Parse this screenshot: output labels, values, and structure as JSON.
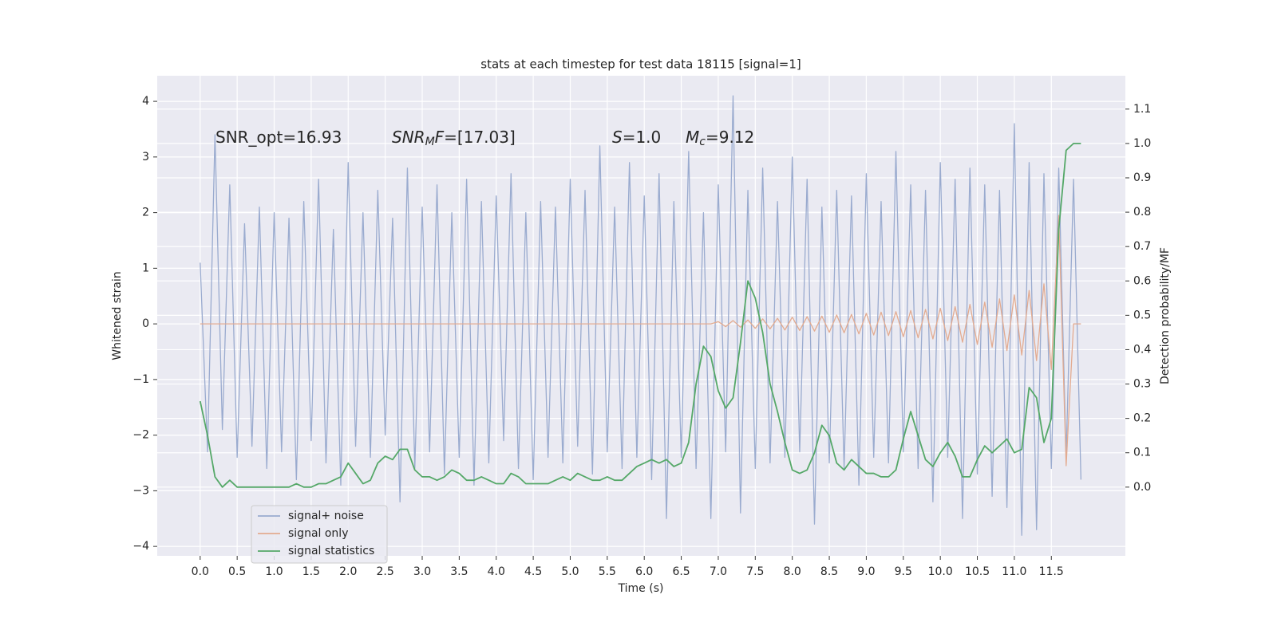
{
  "chart_data": {
    "type": "line",
    "title": "stats at each timestep for test data 18115 [signal=1]",
    "xlabel": "Time (s)",
    "ylabel": "Whitened strain",
    "y2label": "Detection probability/MF",
    "annotations": [
      [
        {
          "text": "SNR_opt=16.93",
          "style": "normal"
        }
      ],
      [
        {
          "text": "SNR",
          "style": "italic"
        },
        {
          "text": "M",
          "style": "sub"
        },
        {
          "text": "F",
          "style": "italic"
        },
        {
          "text": "=[17.03]",
          "style": "normal"
        }
      ],
      [
        {
          "text": "S",
          "style": "italic"
        },
        {
          "text": "=1.0",
          "style": "normal"
        }
      ],
      [
        {
          "text": "M",
          "style": "italic"
        },
        {
          "text": "c",
          "style": "sub"
        },
        {
          "text": "=9.12",
          "style": "normal"
        }
      ]
    ],
    "x": [
      0,
      0.1,
      0.2,
      0.3,
      0.4,
      0.5,
      0.6,
      0.7,
      0.8,
      0.9,
      1,
      1.1,
      1.2,
      1.3,
      1.4,
      1.5,
      1.6,
      1.7,
      1.8,
      1.9,
      2,
      2.1,
      2.2,
      2.3,
      2.4,
      2.5,
      2.6,
      2.7,
      2.8,
      2.9,
      3,
      3.1,
      3.2,
      3.3,
      3.4,
      3.5,
      3.6,
      3.7,
      3.8,
      3.9,
      4,
      4.1,
      4.2,
      4.3,
      4.4,
      4.5,
      4.6,
      4.7,
      4.8,
      4.9,
      5,
      5.1,
      5.2,
      5.3,
      5.4,
      5.5,
      5.6,
      5.7,
      5.8,
      5.9,
      6,
      6.1,
      6.2,
      6.3,
      6.4,
      6.5,
      6.6,
      6.7,
      6.8,
      6.9,
      7,
      7.1,
      7.2,
      7.3,
      7.4,
      7.5,
      7.6,
      7.7,
      7.8,
      7.9,
      8,
      8.1,
      8.2,
      8.3,
      8.4,
      8.5,
      8.6,
      8.7,
      8.8,
      8.9,
      9,
      9.1,
      9.2,
      9.3,
      9.4,
      9.5,
      9.6,
      9.7,
      9.8,
      9.9,
      10,
      10.1,
      10.2,
      10.3,
      10.4,
      10.5,
      10.6,
      10.7,
      10.8,
      10.9,
      11,
      11.1,
      11.2,
      11.3,
      11.4,
      11.5,
      11.6,
      11.7,
      11.8,
      11.9
    ],
    "series": [
      {
        "name": "signal+ noise",
        "color": "#9aabcf",
        "axis": "y",
        "values": [
          1.1,
          -2.3,
          3.4,
          -1.9,
          2.5,
          -2.4,
          1.8,
          -2.2,
          2.1,
          -2.6,
          2.0,
          -2.3,
          1.9,
          -2.8,
          2.2,
          -2.1,
          2.6,
          -2.5,
          1.7,
          -2.9,
          2.9,
          -2.2,
          2.0,
          -2.4,
          2.4,
          -2.0,
          1.9,
          -3.2,
          2.8,
          -2.6,
          2.1,
          -2.3,
          2.5,
          -2.7,
          2.0,
          -2.4,
          2.6,
          -2.9,
          2.2,
          -2.5,
          2.3,
          -2.1,
          2.7,
          -2.6,
          2.0,
          -2.8,
          2.2,
          -2.4,
          2.1,
          -2.5,
          2.6,
          -2.2,
          2.4,
          -2.7,
          3.2,
          -2.3,
          2.1,
          -2.6,
          2.9,
          -2.4,
          2.3,
          -2.8,
          2.7,
          -3.5,
          2.2,
          -2.4,
          3.1,
          -2.6,
          2.0,
          -3.5,
          2.5,
          -2.3,
          4.1,
          -3.4,
          2.4,
          -2.6,
          2.8,
          -2.5,
          2.2,
          -2.4,
          3.0,
          -2.3,
          2.6,
          -3.6,
          2.1,
          -2.5,
          2.4,
          -2.6,
          2.3,
          -2.9,
          2.7,
          -2.4,
          2.2,
          -2.5,
          3.1,
          -2.3,
          2.5,
          -2.6,
          2.4,
          -3.2,
          2.9,
          -2.4,
          2.6,
          -3.5,
          2.8,
          -2.7,
          2.5,
          -3.1,
          2.4,
          -3.3,
          3.6,
          -3.8,
          2.9,
          -3.7,
          2.7,
          -2.6,
          2.8,
          -2.4,
          2.6,
          -2.8
        ]
      },
      {
        "name": "signal only",
        "color": "#e3ab90",
        "axis": "y",
        "values": [
          0,
          0,
          0,
          0,
          0,
          0,
          0,
          0,
          0,
          0,
          0,
          0,
          0,
          0,
          0,
          0,
          0,
          0,
          0,
          0,
          0,
          0,
          0,
          0,
          0,
          0,
          0,
          0,
          0,
          0,
          0,
          0,
          0,
          0,
          0,
          0,
          0,
          0,
          0,
          0,
          0,
          0,
          0,
          0,
          0,
          0,
          0,
          0,
          0,
          0,
          0,
          0,
          0,
          0,
          0,
          0,
          0,
          0,
          0,
          0,
          0,
          0,
          0,
          0,
          0,
          0,
          0,
          0,
          0,
          0,
          0.04,
          -0.05,
          0.06,
          -0.06,
          0.07,
          -0.08,
          0.09,
          -0.09,
          0.1,
          -0.11,
          0.12,
          -0.12,
          0.13,
          -0.13,
          0.14,
          -0.15,
          0.16,
          -0.16,
          0.17,
          -0.18,
          0.19,
          -0.2,
          0.21,
          -0.21,
          0.22,
          -0.23,
          0.24,
          -0.25,
          0.26,
          -0.27,
          0.28,
          -0.3,
          0.31,
          -0.33,
          0.35,
          -0.37,
          0.39,
          -0.42,
          0.45,
          -0.48,
          0.52,
          -0.56,
          0.6,
          -0.66,
          0.72,
          -0.82,
          1.95,
          -2.55,
          0,
          0
        ]
      },
      {
        "name": "signal statistics",
        "color": "#55a868",
        "axis": "y2",
        "values": [
          0.25,
          0.15,
          0.03,
          0.0,
          0.02,
          0.0,
          0.0,
          0.0,
          0.0,
          0.0,
          0.0,
          0.0,
          0.0,
          0.01,
          0.0,
          0.0,
          0.01,
          0.01,
          0.02,
          0.03,
          0.07,
          0.04,
          0.01,
          0.02,
          0.07,
          0.09,
          0.08,
          0.11,
          0.11,
          0.05,
          0.03,
          0.03,
          0.02,
          0.03,
          0.05,
          0.04,
          0.02,
          0.02,
          0.03,
          0.02,
          0.01,
          0.01,
          0.04,
          0.03,
          0.01,
          0.01,
          0.01,
          0.01,
          0.02,
          0.03,
          0.02,
          0.04,
          0.03,
          0.02,
          0.02,
          0.03,
          0.02,
          0.02,
          0.04,
          0.06,
          0.07,
          0.08,
          0.07,
          0.08,
          0.06,
          0.07,
          0.13,
          0.3,
          0.41,
          0.38,
          0.28,
          0.23,
          0.26,
          0.42,
          0.6,
          0.55,
          0.45,
          0.3,
          0.22,
          0.13,
          0.05,
          0.04,
          0.05,
          0.1,
          0.18,
          0.15,
          0.07,
          0.05,
          0.08,
          0.06,
          0.04,
          0.04,
          0.03,
          0.03,
          0.05,
          0.14,
          0.22,
          0.15,
          0.08,
          0.06,
          0.1,
          0.13,
          0.09,
          0.03,
          0.03,
          0.08,
          0.12,
          0.1,
          0.12,
          0.14,
          0.1,
          0.11,
          0.29,
          0.26,
          0.13,
          0.2,
          0.75,
          0.98,
          1.0,
          1.0
        ]
      }
    ],
    "xlim": [
      -0.58,
      12.5
    ],
    "xticks": [
      {
        "value": 0,
        "label": "0.0"
      },
      {
        "value": 0.5,
        "label": "0.5"
      },
      {
        "value": 1,
        "label": "1.0"
      },
      {
        "value": 1.5,
        "label": "1.5"
      },
      {
        "value": 2,
        "label": "2.0"
      },
      {
        "value": 2.5,
        "label": "2.5"
      },
      {
        "value": 3,
        "label": "3.0"
      },
      {
        "value": 3.5,
        "label": "3.5"
      },
      {
        "value": 4,
        "label": "4.0"
      },
      {
        "value": 4.5,
        "label": "4.5"
      },
      {
        "value": 5,
        "label": "5.0"
      },
      {
        "value": 5.5,
        "label": "5.5"
      },
      {
        "value": 6,
        "label": "6.0"
      },
      {
        "value": 6.5,
        "label": "6.5"
      },
      {
        "value": 7,
        "label": "7.0"
      },
      {
        "value": 7.5,
        "label": "7.5"
      },
      {
        "value": 8,
        "label": "8.0"
      },
      {
        "value": 8.5,
        "label": "8.5"
      },
      {
        "value": 9,
        "label": "9.0"
      },
      {
        "value": 9.5,
        "label": "9.5"
      },
      {
        "value": 10,
        "label": "10.0"
      },
      {
        "value": 10.5,
        "label": "10.5"
      },
      {
        "value": 11,
        "label": "11.0"
      },
      {
        "value": 11.5,
        "label": "11.5"
      }
    ],
    "ylim": [
      -4.17,
      4.46
    ],
    "yticks": [
      {
        "value": -4,
        "label": "−4"
      },
      {
        "value": -3,
        "label": "−3"
      },
      {
        "value": -2,
        "label": "−2"
      },
      {
        "value": -1,
        "label": "−1"
      },
      0,
      1,
      2,
      3,
      4
    ],
    "y2lim": [
      -0.2,
      1.197
    ],
    "y2ticks": [
      {
        "value": 0,
        "label": "0.0"
      },
      {
        "value": 0.1,
        "label": "0.1"
      },
      {
        "value": 0.2,
        "label": "0.2"
      },
      {
        "value": 0.3,
        "label": "0.3"
      },
      {
        "value": 0.4,
        "label": "0.4"
      },
      {
        "value": 0.5,
        "label": "0.5"
      },
      {
        "value": 0.6,
        "label": "0.6"
      },
      {
        "value": 0.7,
        "label": "0.7"
      },
      {
        "value": 0.8,
        "label": "0.8"
      },
      {
        "value": 0.9,
        "label": "0.9"
      },
      {
        "value": 1,
        "label": "1.0"
      },
      {
        "value": 1.1,
        "label": "1.1"
      }
    ],
    "grid": true,
    "legend": "lower left"
  }
}
